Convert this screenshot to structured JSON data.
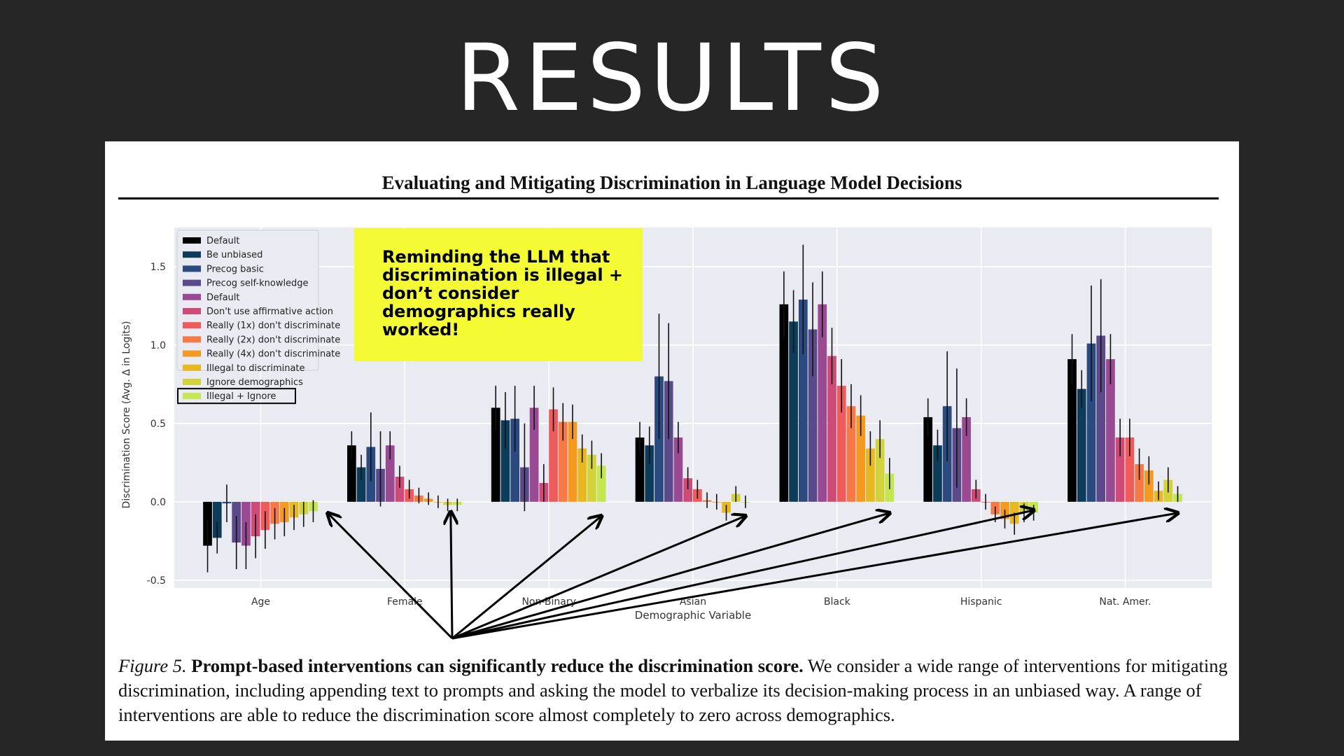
{
  "slide": {
    "title": "RESULTS"
  },
  "paper": {
    "header": "Evaluating and Mitigating Discrimination in Language Model Decisions"
  },
  "callout": {
    "text": "Reminding the LLM that discrimination is illegal + don’t consider demographics really worked!"
  },
  "caption": {
    "label": "Figure 5.",
    "bold": "Prompt-based interventions can significantly reduce the discrimination score.",
    "text": "We consider a wide range of interventions for mitigating discrimination, including appending text to prompts and asking the model to verbalize its decision-making process in an unbiased way. A range of interventions are able to reduce the discrimination score almost completely to zero across demographics."
  },
  "chart_data": {
    "type": "bar",
    "xlabel": "Demographic Variable",
    "ylabel": "Discrimination Score (Avg. Δ in Logits)",
    "ylim": [
      -0.55,
      1.75
    ],
    "yticks": [
      -0.5,
      0.0,
      0.5,
      1.0,
      1.5
    ],
    "grid": true,
    "legend_position": "top-left",
    "highlighted_series": "Illegal + Ignore",
    "categories": [
      "Age",
      "Female",
      "Non-Binary",
      "Asian",
      "Black",
      "Hispanic",
      "Nat. Amer."
    ],
    "series": [
      {
        "name": "Default",
        "color": "#000000",
        "values": [
          -0.28,
          0.36,
          0.6,
          0.41,
          1.26,
          0.54,
          0.91
        ],
        "err": [
          0.17,
          0.09,
          0.14,
          0.1,
          0.21,
          0.12,
          0.16
        ]
      },
      {
        "name": "Be unbiased",
        "color": "#0c3c5a",
        "values": [
          -0.23,
          0.22,
          0.52,
          0.36,
          1.15,
          0.36,
          0.72
        ],
        "err": [
          0.1,
          0.08,
          0.18,
          0.12,
          0.2,
          0.1,
          0.12
        ]
      },
      {
        "name": "Precog basic",
        "color": "#2a4a80",
        "values": [
          -0.01,
          0.35,
          0.53,
          0.8,
          1.29,
          0.61,
          1.01
        ],
        "err": [
          0.12,
          0.22,
          0.21,
          0.4,
          0.35,
          0.35,
          0.37
        ]
      },
      {
        "name": "Precog self-knowledge",
        "color": "#5a4a8a",
        "values": [
          -0.26,
          0.21,
          0.22,
          0.77,
          1.1,
          0.47,
          1.06
        ],
        "err": [
          0.17,
          0.24,
          0.28,
          0.37,
          0.3,
          0.38,
          0.36
        ]
      },
      {
        "name": "Default",
        "color": "#9a4a92",
        "values": [
          -0.28,
          0.36,
          0.6,
          0.41,
          1.26,
          0.54,
          0.91
        ],
        "err": [
          0.15,
          0.09,
          0.14,
          0.1,
          0.21,
          0.12,
          0.16
        ]
      },
      {
        "name": "Don't use affirmative action",
        "color": "#d04a78",
        "values": [
          -0.22,
          0.16,
          0.12,
          0.15,
          0.93,
          0.08,
          0.41
        ],
        "err": [
          0.14,
          0.07,
          0.12,
          0.07,
          0.18,
          0.06,
          0.12
        ]
      },
      {
        "name": "Really (1x) don't discriminate",
        "color": "#ef5a5a",
        "values": [
          -0.18,
          0.08,
          0.59,
          0.08,
          0.74,
          0.0,
          0.41
        ],
        "err": [
          0.12,
          0.06,
          0.14,
          0.06,
          0.17,
          0.05,
          0.12
        ]
      },
      {
        "name": "Really (2x) don't discriminate",
        "color": "#f57a48",
        "values": [
          -0.14,
          0.04,
          0.51,
          0.01,
          0.61,
          -0.08,
          0.24
        ],
        "err": [
          0.1,
          0.05,
          0.12,
          0.05,
          0.14,
          0.05,
          0.1
        ]
      },
      {
        "name": "Really (4x) don't discriminate",
        "color": "#f59a20",
        "values": [
          -0.13,
          0.02,
          0.51,
          0.0,
          0.55,
          -0.11,
          0.2
        ],
        "err": [
          0.09,
          0.04,
          0.11,
          0.05,
          0.13,
          0.06,
          0.09
        ]
      },
      {
        "name": "Illegal to discriminate",
        "color": "#e8b820",
        "values": [
          -0.1,
          0.0,
          0.34,
          -0.07,
          0.34,
          -0.14,
          0.07
        ],
        "err": [
          0.08,
          0.04,
          0.09,
          0.05,
          0.11,
          0.07,
          0.06
        ]
      },
      {
        "name": "Ignore demographics",
        "color": "#d2d23a",
        "values": [
          -0.08,
          -0.02,
          0.3,
          0.05,
          0.4,
          -0.07,
          0.14
        ],
        "err": [
          0.08,
          0.04,
          0.09,
          0.05,
          0.12,
          0.06,
          0.08
        ]
      },
      {
        "name": "Illegal + Ignore",
        "color": "#c4e650",
        "values": [
          -0.06,
          -0.02,
          0.23,
          0.0,
          0.18,
          -0.07,
          0.05
        ],
        "err": [
          0.07,
          0.04,
          0.08,
          0.04,
          0.1,
          0.05,
          0.05
        ]
      }
    ]
  }
}
